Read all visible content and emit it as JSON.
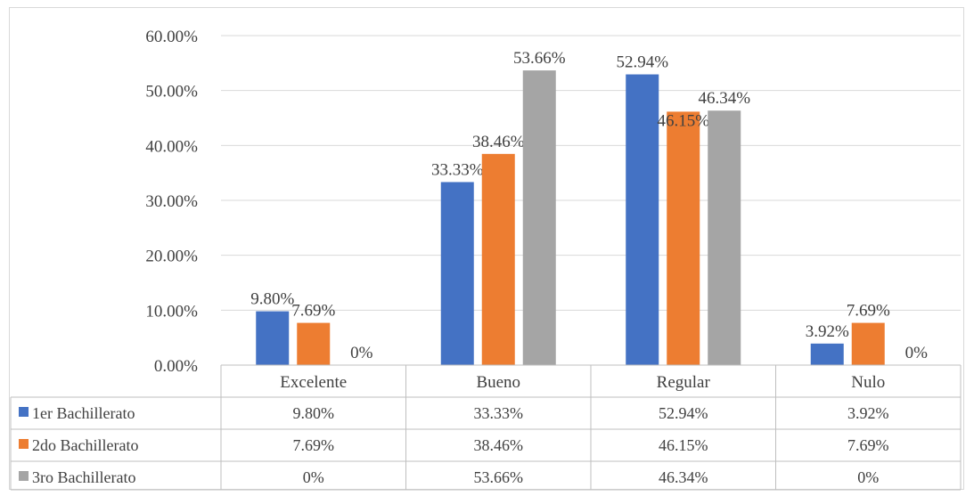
{
  "chart_data": {
    "type": "bar",
    "categories": [
      "Excelente",
      "Bueno",
      "Regular",
      "Nulo"
    ],
    "series": [
      {
        "name": "1er Bachillerato",
        "values": [
          9.8,
          33.33,
          52.94,
          3.92
        ],
        "labels": [
          "9.80%",
          "33.33%",
          "52.94%",
          "3.92%"
        ],
        "color": "#4472c4"
      },
      {
        "name": "2do Bachillerato",
        "values": [
          7.69,
          38.46,
          46.15,
          7.69
        ],
        "labels": [
          "7.69%",
          "38.46%",
          "46.15%",
          "7.69%"
        ],
        "color": "#ed7d31"
      },
      {
        "name": "3ro Bachillerato",
        "values": [
          0,
          53.66,
          46.34,
          0
        ],
        "labels": [
          "0%",
          "53.66%",
          "46.34%",
          "0%"
        ],
        "color": "#a5a5a5"
      }
    ],
    "ylim": [
      0,
      60
    ],
    "yticks": [
      "0.00%",
      "10.00%",
      "20.00%",
      "30.00%",
      "40.00%",
      "50.00%",
      "60.00%"
    ],
    "grid": true,
    "legend": "data-table"
  }
}
